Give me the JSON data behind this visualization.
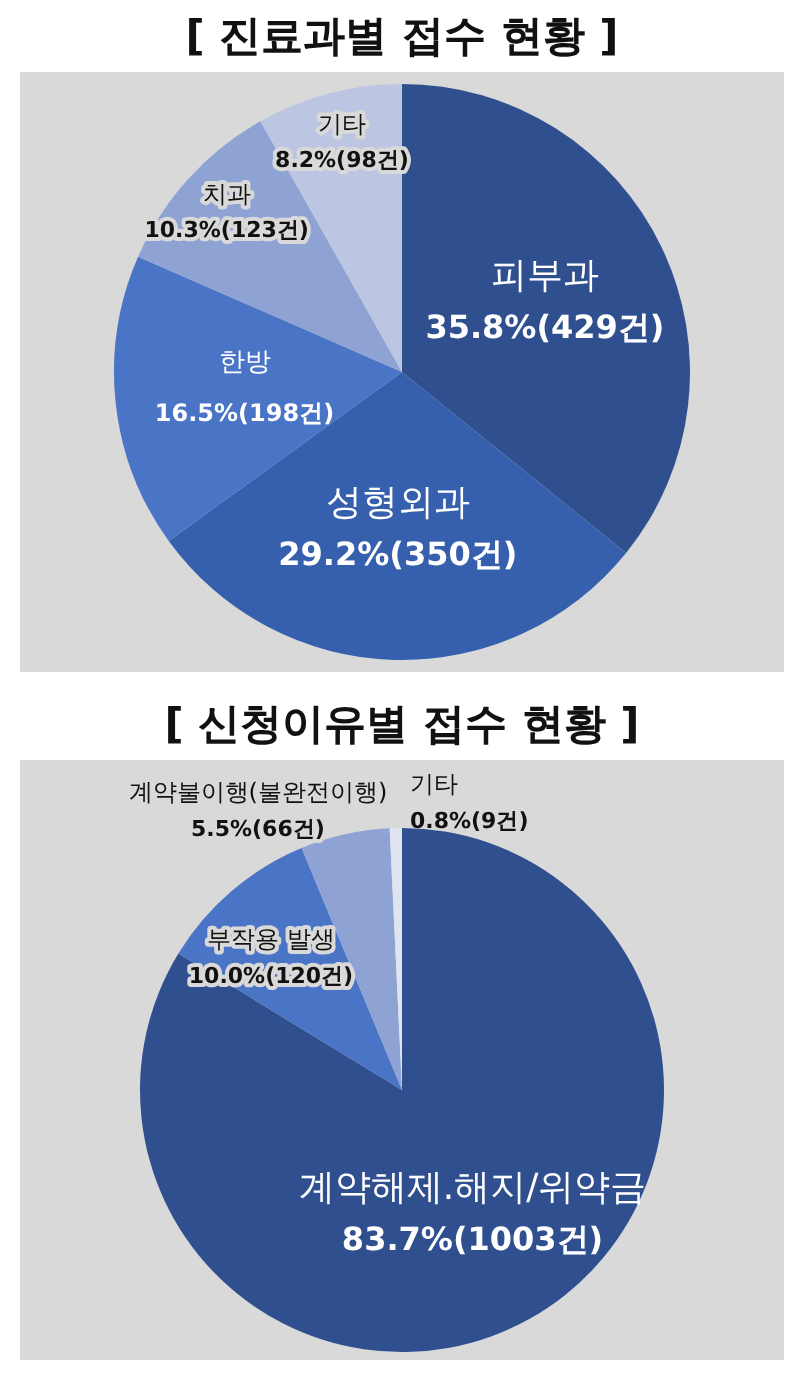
{
  "chart_data": [
    {
      "type": "pie",
      "title": "[ 진료과별 접수 현황 ]",
      "categories": [
        "피부과",
        "성형외과",
        "한방",
        "치과",
        "기타"
      ],
      "values": [
        429,
        350,
        198,
        123,
        98
      ],
      "value_labels": [
        "35.8%(429건)",
        "29.2%(350건)",
        "16.5%(198건)",
        "10.3%(123건)",
        "8.2%(98건)"
      ],
      "colors": [
        "#2f4f8f",
        "#3660ad",
        "#4a74c6",
        "#8fa2d4",
        "#bcc6e2"
      ]
    },
    {
      "type": "pie",
      "title": "[ 신청이유별 접수 현황 ]",
      "categories": [
        "계약해제.해지/위약금",
        "부작용 발생",
        "계약불이행(불완전이행)",
        "기타"
      ],
      "values": [
        1003,
        120,
        66,
        9
      ],
      "value_labels": [
        "83.7%(1003건)",
        "10.0%(120건)",
        "5.5%(66건)",
        "0.8%(9건)"
      ],
      "colors": [
        "#2f4f8f",
        "#4a74c6",
        "#8fa2d4",
        "#dfe4f1"
      ]
    }
  ]
}
